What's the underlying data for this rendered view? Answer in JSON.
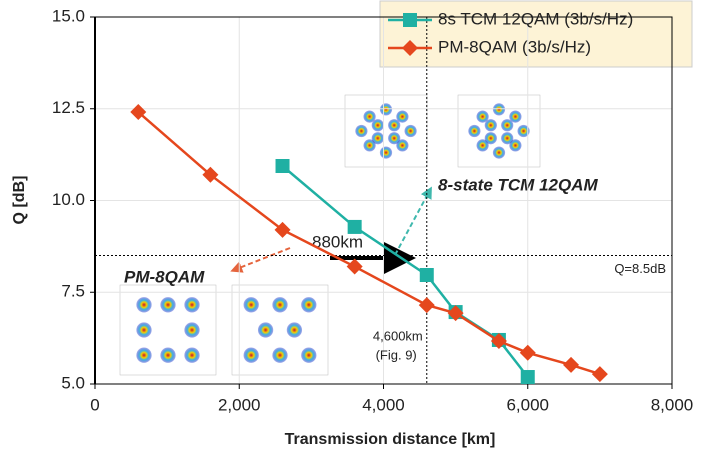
{
  "chart_data": {
    "type": "line",
    "x_label": "Transmission distance [km]",
    "y_label": "Q [dB]",
    "xlim": [
      0,
      8000
    ],
    "xticks": [
      0,
      {
        "value": 2000,
        "label": "2,000"
      },
      {
        "value": 4000,
        "label": "4,000"
      },
      {
        "value": 6000,
        "label": "6,000"
      },
      {
        "value": 8000,
        "label": "8,000"
      }
    ],
    "ylim": [
      5,
      15
    ],
    "yticks": [
      {
        "value": 5,
        "label": "5.0"
      },
      {
        "value": 7.5,
        "label": "7.5"
      },
      {
        "value": 10,
        "label": "10.0"
      },
      {
        "value": 12.5,
        "label": "12.5"
      },
      {
        "value": 15,
        "label": "15.0"
      }
    ],
    "grid": true,
    "series": [
      {
        "name": "8s TCM 12QAM (3b/s/Hz)",
        "color": "#1fb0a3",
        "marker": "square",
        "x": [
          2600,
          3600,
          4600,
          5000,
          5600,
          6000
        ],
        "values": [
          10.94,
          9.28,
          7.97,
          6.96,
          6.2,
          5.19
        ]
      },
      {
        "name": "PM-8QAM (3b/s/Hz)",
        "color": "#e5471d",
        "marker": "diamond",
        "x": [
          600,
          1600,
          2600,
          3600,
          4600,
          5000,
          5600,
          6000,
          6600,
          7000
        ],
        "values": [
          12.41,
          10.7,
          9.2,
          8.2,
          7.15,
          6.93,
          6.17,
          5.85,
          5.52,
          5.27
        ]
      }
    ],
    "hline": {
      "value": 8.5,
      "label": "Q=8.5dB"
    },
    "vline": {
      "value": 4600,
      "label": "4,600km",
      "sublabel": "(Fig. 9)"
    },
    "annotations": {
      "tcm": "8-state TCM 12QAM",
      "pm": "PM-8QAM",
      "gain": "880km"
    }
  }
}
